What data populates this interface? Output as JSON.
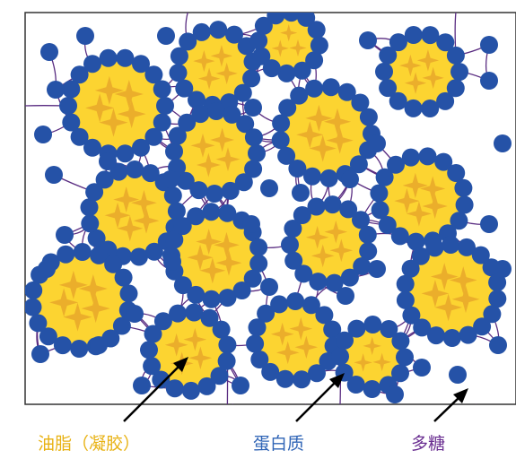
{
  "labels": {
    "oil": "油脂（凝胶）",
    "protein": "蛋白质",
    "polysaccharide": "多糖"
  },
  "colors": {
    "oil_label": "#e8b213",
    "protein_label": "#2f64b6",
    "polysaccharide_label": "#6a2e91",
    "droplet_outer": "#fcd431",
    "droplet_core": "#e7a72a",
    "protein": "#2552a7",
    "polysaccharide": "#5a2d82",
    "frame": "#333333",
    "arrow": "#000000"
  }
}
